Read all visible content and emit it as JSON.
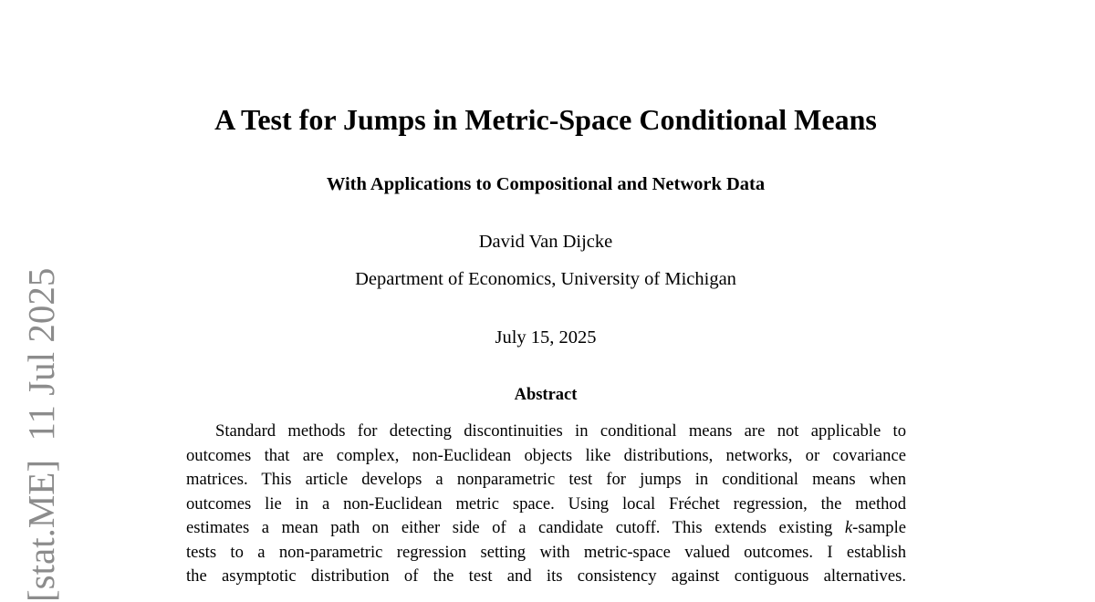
{
  "sidebar": "[stat.ME]  11 Jul 2025",
  "header": {
    "title": "A Test for Jumps in Metric-Space Conditional Means",
    "subtitle": "With Applications to Compositional and Network Data",
    "author": "David Van Dijcke",
    "affiliation": "Department of Economics, University of Michigan",
    "date": "July 15, 2025"
  },
  "abstract": {
    "heading": "Abstract",
    "lines": [
      "Standard methods for detecting discontinuities in conditional means are not applicable to",
      "outcomes that are complex, non-Euclidean objects like distributions, networks, or covariance",
      "matrices.  This article develops a nonparametric test for jumps in conditional means when",
      "outcomes lie in a non-Euclidean metric space.  Using local Fréchet regression, the method",
      [
        "estimates a mean path on either side of a candidate cutoff.  This extends existing ",
        "k",
        "-sample"
      ],
      "tests to a non-parametric regression setting with metric-space valued outcomes. I establish",
      "the asymptotic distribution of the test and its consistency against contiguous alternatives."
    ]
  }
}
